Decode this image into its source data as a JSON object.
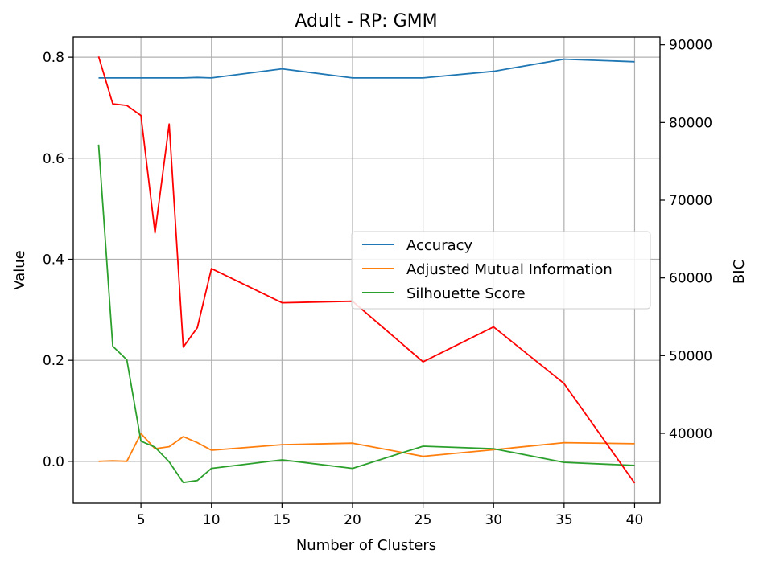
{
  "chart_data": {
    "type": "line",
    "title": "Adult - RP: GMM",
    "xlabel": "Number of Clusters",
    "ylabel": "Value",
    "y2label": "BIC",
    "x": [
      2,
      3,
      4,
      5,
      6,
      7,
      8,
      9,
      10,
      15,
      20,
      25,
      30,
      35,
      40
    ],
    "xticks": [
      5,
      10,
      15,
      20,
      25,
      30,
      35,
      40
    ],
    "xlim": [
      0.2,
      41.8
    ],
    "ylim": [
      -0.083,
      0.84
    ],
    "yticks": [
      0.0,
      0.2,
      0.4,
      0.6,
      0.8
    ],
    "y2lim": [
      31000,
      91000
    ],
    "y2ticks": [
      40000,
      50000,
      60000,
      70000,
      80000,
      90000
    ],
    "grid": true,
    "legend_position": "center-right",
    "series": [
      {
        "name": "Accuracy",
        "axis": "left",
        "color": "#1f77b4",
        "values": [
          0.759,
          0.759,
          0.759,
          0.759,
          0.759,
          0.759,
          0.759,
          0.76,
          0.759,
          0.777,
          0.759,
          0.759,
          0.772,
          0.796,
          0.791
        ]
      },
      {
        "name": "Adjusted Mutual Information",
        "axis": "left",
        "color": "#ff7f0e",
        "values": [
          0.0,
          0.001,
          0.0,
          0.055,
          0.025,
          0.029,
          0.049,
          0.037,
          0.022,
          0.033,
          0.036,
          0.01,
          0.023,
          0.037,
          0.035
        ]
      },
      {
        "name": "Silhouette Score",
        "axis": "left",
        "color": "#2ca02c",
        "values": [
          0.627,
          0.228,
          0.201,
          0.04,
          0.028,
          -0.001,
          -0.042,
          -0.038,
          -0.014,
          0.003,
          -0.014,
          0.03,
          0.025,
          -0.002,
          -0.008
        ]
      },
      {
        "name": "",
        "axis": "right",
        "color": "#ff0000",
        "values": [
          88500,
          82400,
          82200,
          80900,
          65800,
          79800,
          51100,
          53600,
          61200,
          56800,
          57000,
          49200,
          53700,
          46400,
          33600
        ]
      }
    ]
  }
}
